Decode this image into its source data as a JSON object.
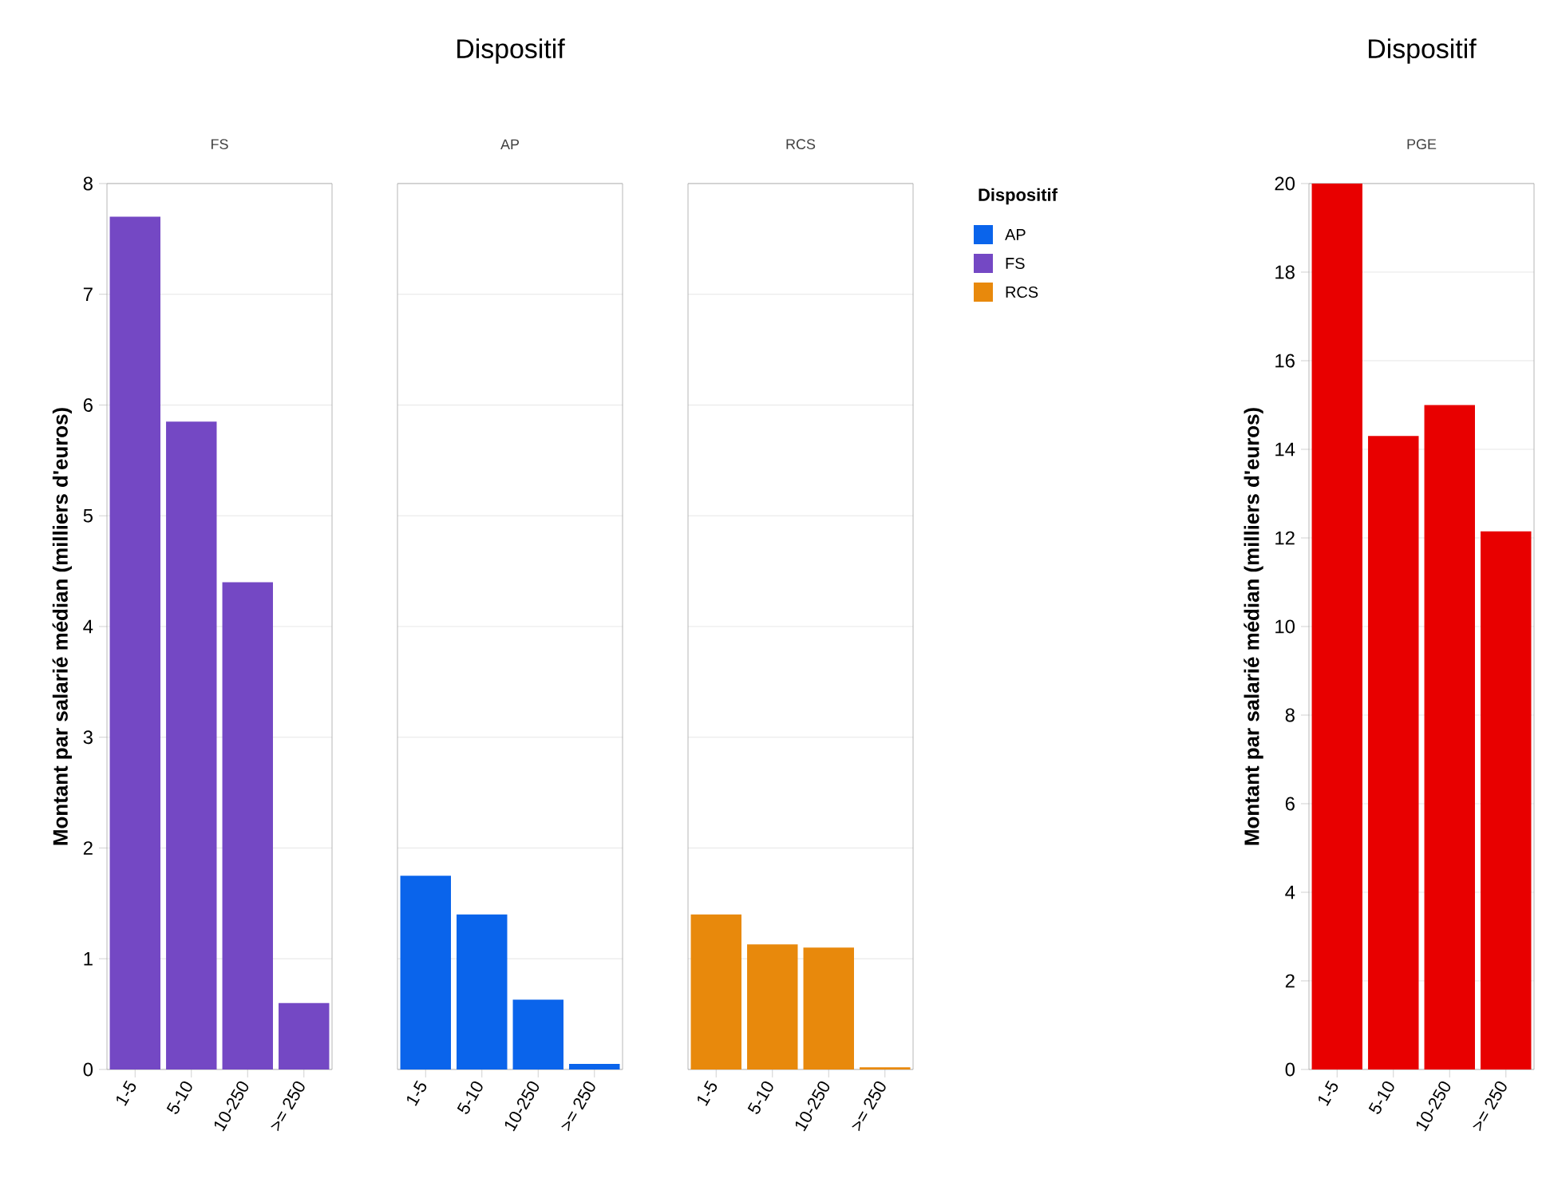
{
  "chart_data": [
    {
      "type": "bar",
      "subtitle": "FS",
      "ylabel": "Montant par salarié médian (milliers d'euros)",
      "categories": [
        "1-5",
        "5-10",
        "10-250",
        ">= 250"
      ],
      "series": [
        {
          "name": "FS",
          "color": "#7448c4",
          "values": [
            7.7,
            5.85,
            4.4,
            0.6
          ]
        }
      ],
      "ylim": [
        0,
        8
      ],
      "yticks": [
        0,
        1,
        2,
        3,
        4,
        5,
        6,
        7,
        8
      ],
      "grid": "y"
    },
    {
      "type": "bar",
      "title": "Dispositif",
      "subtitle": "AP",
      "categories": [
        "1-5",
        "5-10",
        "10-250",
        ">= 250"
      ],
      "series": [
        {
          "name": "AP",
          "color": "#0a64eb",
          "values": [
            1.75,
            1.4,
            0.63,
            0.05
          ]
        }
      ],
      "ylim": [
        0,
        8
      ],
      "yticks": [
        0,
        1,
        2,
        3,
        4,
        5,
        6,
        7,
        8
      ],
      "grid": "y",
      "tick_labels": "x"
    },
    {
      "type": "bar",
      "subtitle": "RCS",
      "categories": [
        "1-5",
        "5-10",
        "10-250",
        ">= 250"
      ],
      "series": [
        {
          "name": "RCS",
          "color": "#e8890c",
          "values": [
            1.4,
            1.13,
            1.1,
            0.02
          ]
        }
      ],
      "ylim": [
        0,
        8
      ],
      "yticks": [
        0,
        1,
        2,
        3,
        4,
        5,
        6,
        7,
        8
      ],
      "grid": "y",
      "tick_labels": "x",
      "legend": "right",
      "legend_title": "Dispositif"
    },
    {
      "type": "bar",
      "title": "Dispositif",
      "subtitle": "PGE",
      "ylabel": "Montant par salarié médian (milliers d'euros)",
      "categories": [
        "1-5",
        "5-10",
        "10-250",
        ">= 250"
      ],
      "series": [
        {
          "color": "#e80000",
          "values": [
            20,
            14.3,
            15.0,
            12.15
          ]
        }
      ],
      "ylim": [
        0,
        20
      ],
      "yticks": [
        0,
        2,
        4,
        6,
        8,
        10,
        12,
        14,
        16,
        18,
        20
      ],
      "grid": "y"
    }
  ]
}
